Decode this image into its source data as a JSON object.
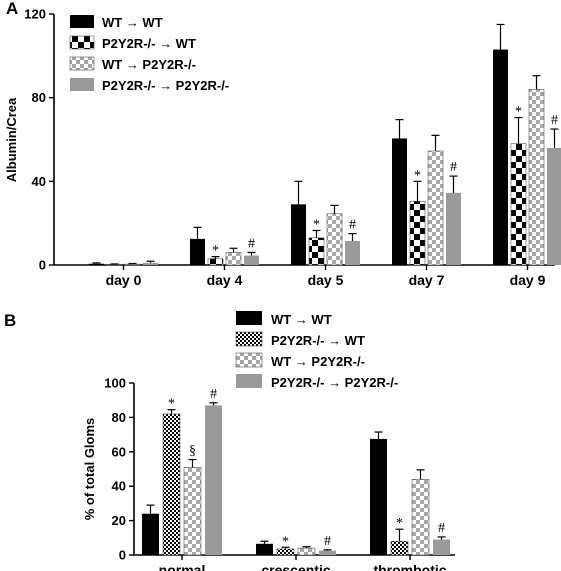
{
  "chart_data": [
    {
      "panel_label": "A",
      "type": "bar",
      "ylabel": "Albumin/Crea",
      "ylim": [
        0,
        120
      ],
      "yticks": [
        0,
        40,
        80,
        120
      ],
      "categories": [
        "day 0",
        "day 4",
        "day 5",
        "day 7",
        "day 9"
      ],
      "legend_position": "top-left",
      "series": [
        {
          "name": "WT → WT",
          "pattern": "solid-black",
          "values": [
            0.6,
            12.5,
            29,
            60.5,
            103
          ],
          "errors": [
            0.4,
            5.5,
            11,
            9,
            12
          ]
        },
        {
          "name": "P2Y2R-/- → WT",
          "pattern": "checker-large",
          "values": [
            0.3,
            3,
            13,
            30.5,
            58
          ],
          "errors": [
            0.2,
            1,
            3.5,
            9.5,
            12.5
          ]
        },
        {
          "name": "WT → P2Y2R-/-",
          "pattern": "checker-gray",
          "values": [
            0.4,
            6,
            24.5,
            54.5,
            84
          ],
          "errors": [
            0.3,
            2,
            4,
            7.5,
            6.5
          ]
        },
        {
          "name": "P2Y2R-/- → P2Y2R-/-",
          "pattern": "solid-gray",
          "values": [
            1,
            4.5,
            11.5,
            34.5,
            56
          ],
          "errors": [
            0.8,
            1.5,
            3.5,
            8,
            9
          ]
        }
      ],
      "annotations": [
        {
          "category": "day 4",
          "series": 1,
          "text": "*"
        },
        {
          "category": "day 4",
          "series": 3,
          "text": "#"
        },
        {
          "category": "day 5",
          "series": 1,
          "text": "*"
        },
        {
          "category": "day 5",
          "series": 3,
          "text": "#"
        },
        {
          "category": "day 7",
          "series": 1,
          "text": "*"
        },
        {
          "category": "day 7",
          "series": 3,
          "text": "#"
        },
        {
          "category": "day 9",
          "series": 1,
          "text": "*"
        },
        {
          "category": "day 9",
          "series": 3,
          "text": "#"
        }
      ]
    },
    {
      "panel_label": "B",
      "type": "bar",
      "ylabel": "% of total Gloms",
      "ylim": [
        0,
        100
      ],
      "yticks": [
        0,
        20,
        40,
        60,
        80,
        100
      ],
      "categories": [
        "normal",
        "crescentic",
        "thrombotic"
      ],
      "legend_position": "top-right",
      "series": [
        {
          "name": "WT → WT",
          "pattern": "solid-black",
          "values": [
            24,
            6.5,
            67.5
          ],
          "errors": [
            5,
            1.5,
            4
          ]
        },
        {
          "name": "P2Y2R-/- → WT",
          "pattern": "checker-small",
          "values": [
            82,
            3.5,
            8
          ],
          "errors": [
            2.5,
            1,
            7
          ]
        },
        {
          "name": "WT → P2Y2R-/-",
          "pattern": "checker-gray",
          "values": [
            51,
            4,
            44
          ],
          "errors": [
            4.5,
            0.8,
            5.5
          ]
        },
        {
          "name": "P2Y2R-/- → P2Y2R-/-",
          "pattern": "solid-gray",
          "values": [
            87,
            2.5,
            9
          ],
          "errors": [
            1.5,
            0.5,
            1.5
          ]
        }
      ],
      "annotations": [
        {
          "category": "normal",
          "series": 1,
          "text": "*"
        },
        {
          "category": "normal",
          "series": 2,
          "text": "§"
        },
        {
          "category": "normal",
          "series": 3,
          "text": "#"
        },
        {
          "category": "crescentic",
          "series": 1,
          "text": "*"
        },
        {
          "category": "crescentic",
          "series": 3,
          "text": "#"
        },
        {
          "category": "thrombotic",
          "series": 1,
          "text": "*"
        },
        {
          "category": "thrombotic",
          "series": 3,
          "text": "#"
        }
      ]
    }
  ],
  "colors": {
    "black": "#000000",
    "gray": "#9a9a9a",
    "light": "#d0d0d0",
    "white": "#ffffff"
  }
}
